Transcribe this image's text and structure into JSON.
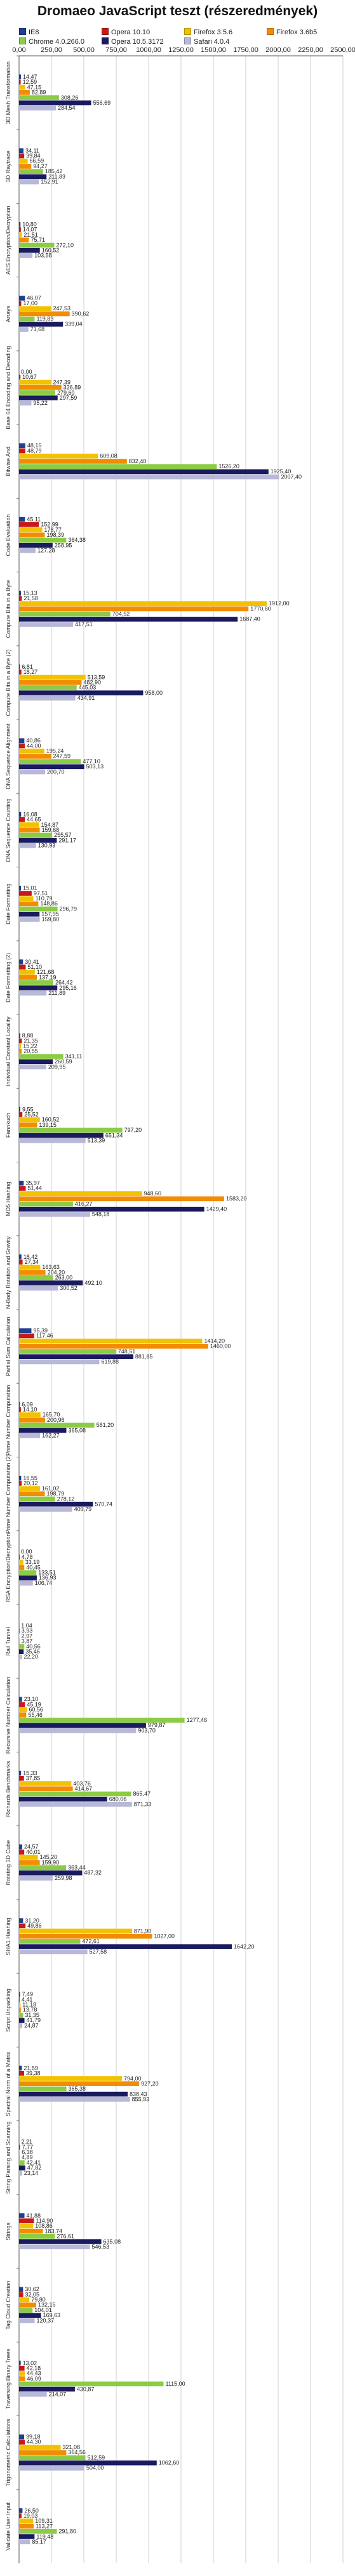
{
  "chart_data": {
    "type": "bar",
    "orientation": "horizontal",
    "title": "Dromaeo JavaScript teszt (részeredmények)",
    "xlim": [
      0,
      2500
    ],
    "xticks": [
      0,
      250,
      500,
      750,
      1000,
      1250,
      1500,
      1750,
      2000,
      2250,
      2500
    ],
    "xtick_labels": [
      "0,00",
      "250,00",
      "500,00",
      "750,00",
      "1000,00",
      "1250,00",
      "1500,00",
      "1750,00",
      "2000,00",
      "2250,00",
      "2500,00"
    ],
    "grid": true,
    "legend_position": "top",
    "series": [
      {
        "name": "IE8",
        "color": "#1f3f8f",
        "values": [
          14.47,
          34.11,
          10.8,
          46.07,
          0.0,
          48.15,
          45.11,
          15.13,
          6.81,
          40.86,
          16.08,
          15.01,
          30.41,
          8.88,
          9.55,
          35.97,
          18.42,
          95.39,
          6.09,
          16.55,
          0.0,
          1.04,
          23.1,
          15.33,
          24.57,
          31.2,
          7.49,
          21.59,
          2.21,
          41.88,
          30.62,
          13.02,
          39.18,
          26.5
        ]
      },
      {
        "name": "Opera 10.10",
        "color": "#c81818",
        "values": [
          12.59,
          39.84,
          14.07,
          17.0,
          10.67,
          48.79,
          152.99,
          21.58,
          18.27,
          44.0,
          44.65,
          97.51,
          51.1,
          21.35,
          25.52,
          51.44,
          27.34,
          117.46,
          14.1,
          20.12,
          4.78,
          3.93,
          45.19,
          37.85,
          40.01,
          49.86,
          4.41,
          39.38,
          7.77,
          114.9,
          32.05,
          42.18,
          44.3,
          19.03
        ]
      },
      {
        "name": "Firefox 3.5.6",
        "color": "#f2c200",
        "values": [
          47.15,
          66.59,
          21.51,
          247.53,
          247.39,
          609.08,
          178.77,
          1912.0,
          513.59,
          195.24,
          154.87,
          110.79,
          121.68,
          15.22,
          160.52,
          948.6,
          163.63,
          1414.2,
          165.7,
          161.02,
          33.19,
          2.97,
          60.56,
          403.76,
          145.2,
          871.9,
          11.18,
          794.0,
          6.38,
          108.86,
          79.8,
          44.43,
          321.08,
          109.31
        ]
      },
      {
        "name": "Firefox 3.6b5",
        "color": "#f28c00",
        "values": [
          82.89,
          94.27,
          75.71,
          390.62,
          326.89,
          832.4,
          198.39,
          1770.8,
          482.9,
          247.59,
          159.68,
          148.86,
          137.19,
          20.55,
          139.15,
          1583.2,
          204.2,
          1460.0,
          200.96,
          198.79,
          40.45,
          3.87,
          55.46,
          414.67,
          159.9,
          1027.0,
          13.78,
          927.2,
          4.89,
          183.74,
          132.15,
          46.09,
          364.56,
          113.27
        ]
      },
      {
        "name": "Chrome 4.0.266.0",
        "color": "#8ccc44",
        "values": [
          308.26,
          185.42,
          272.1,
          119.83,
          279.6,
          1526.2,
          364.38,
          704.52,
          445.03,
          477.1,
          255.57,
          296.79,
          264.42,
          341.11,
          797.2,
          416.27,
          263.0,
          748.51,
          581.2,
          278.12,
          133.51,
          40.56,
          1277.46,
          865.47,
          363.44,
          472.61,
          31.35,
          365.38,
          42.41,
          276.61,
          104.01,
          1115.0,
          512.59,
          291.8
        ]
      },
      {
        "name": "Opera 10.5.3172",
        "color": "#1a1a5e",
        "values": [
          556.69,
          211.83,
          160.52,
          339.04,
          297.59,
          1925.4,
          258.95,
          1687.4,
          958.0,
          503.13,
          291.17,
          157.95,
          295.16,
          260.59,
          651.34,
          1429.4,
          492.1,
          881.85,
          365.08,
          570.74,
          136.93,
          35.46,
          979.87,
          680.06,
          487.32,
          1642.2,
          41.79,
          838.43,
          47.82,
          635.08,
          169.63,
          430.87,
          1062.6,
          119.48
        ]
      },
      {
        "name": "Safari 4.0.4",
        "color": "#b8b8d8",
        "values": [
          284.54,
          152.91,
          103.58,
          71.68,
          95.22,
          2007.4,
          127.28,
          417.51,
          434.91,
          200.7,
          130.93,
          159.8,
          211.89,
          209.95,
          513.39,
          548.18,
          300.52,
          619.88,
          162.27,
          409.79,
          106.74,
          22.2,
          903.7,
          871.33,
          259.98,
          527.58,
          24.87,
          855.93,
          23.14,
          546.53,
          120.37,
          214.07,
          504.0,
          85.17
        ]
      }
    ],
    "categories": [
      "3D Mesh Transformation",
      "3D Raytrace",
      "AES Encryption/Decryption",
      "Arrays",
      "Base 64 Encoding and Decoding",
      "Bitwise And",
      "Code Evaluation",
      "Compute Bits in a Byte",
      "Compute Bits in a Byte (2)",
      "DNA Sequence Alignment",
      "DNA Sequence Counting",
      "Date Formatting",
      "Date Formatting (2)",
      "Individual Constant Locality",
      "Fannkuch",
      "MD5 Hashing",
      "N-Body Rotation and Gravity",
      "Partial Sum Calculation",
      "Prime Number Computation",
      "Prime Number Computation (2)",
      "RSA Encryption/Decryption",
      "Rail Tunnel",
      "Recursive Number Calculation",
      "Richards Benchmarks",
      "Rotating 3D Cube",
      "SHA1 Hashing",
      "Script Unpacking",
      "Spectral Norm of a Matrix",
      "String Parsing and Scanning",
      "Strings",
      "Tag Cloud Creation",
      "Traversing Binary Trees",
      "Trigonometric Calculations",
      "Validate User Input"
    ]
  }
}
